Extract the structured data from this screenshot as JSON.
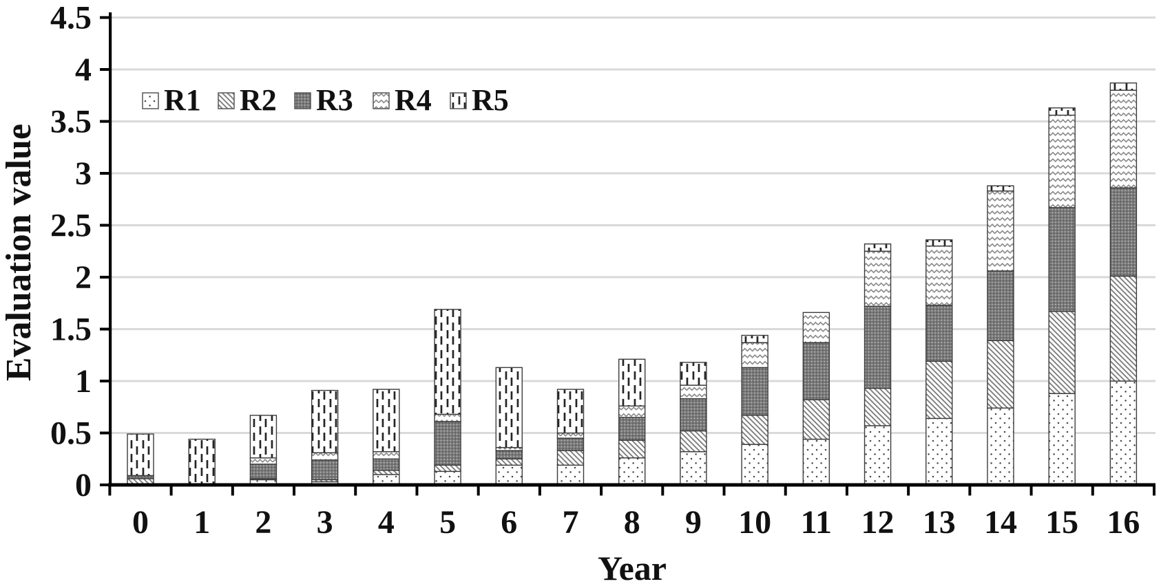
{
  "chart_data": {
    "type": "bar",
    "stacked": true,
    "title": "",
    "xlabel": "Year",
    "ylabel": "Evaluation value",
    "categories": [
      "0",
      "1",
      "2",
      "3",
      "4",
      "5",
      "6",
      "7",
      "8",
      "9",
      "10",
      "11",
      "12",
      "13",
      "14",
      "15",
      "16"
    ],
    "series": [
      {
        "name": "R1",
        "pattern": "sparse-dots",
        "values": [
          0.0,
          0.0,
          0.05,
          0.03,
          0.1,
          0.13,
          0.19,
          0.19,
          0.26,
          0.32,
          0.39,
          0.44,
          0.57,
          0.64,
          0.74,
          0.88,
          1.0
        ]
      },
      {
        "name": "R2",
        "pattern": "diagonal-hatch",
        "values": [
          0.06,
          0.0,
          0.01,
          0.02,
          0.04,
          0.06,
          0.06,
          0.14,
          0.17,
          0.2,
          0.28,
          0.38,
          0.36,
          0.55,
          0.65,
          0.79,
          1.01
        ]
      },
      {
        "name": "R3",
        "pattern": "dark-dense-dots",
        "values": [
          0.03,
          0.01,
          0.14,
          0.19,
          0.11,
          0.42,
          0.08,
          0.12,
          0.22,
          0.31,
          0.46,
          0.55,
          0.79,
          0.54,
          0.67,
          1.0,
          0.85
        ]
      },
      {
        "name": "R4",
        "pattern": "horizontal-waves",
        "values": [
          0.0,
          0.0,
          0.06,
          0.07,
          0.07,
          0.07,
          0.03,
          0.05,
          0.11,
          0.13,
          0.24,
          0.29,
          0.53,
          0.57,
          0.77,
          0.89,
          0.94
        ]
      },
      {
        "name": "R5",
        "pattern": "vertical-dashes",
        "values": [
          0.4,
          0.43,
          0.41,
          0.6,
          0.6,
          1.01,
          0.77,
          0.42,
          0.45,
          0.22,
          0.07,
          0.0,
          0.07,
          0.06,
          0.05,
          0.07,
          0.07
        ]
      }
    ],
    "ylim": [
      0,
      4.5
    ],
    "ytick_step": 0.5,
    "ytick_labels": [
      "0",
      "0.5",
      "1",
      "1.5",
      "2",
      "2.5",
      "3",
      "3.5",
      "4",
      "4.5"
    ],
    "grid": "horizontal",
    "legend_position": "top-left-inside",
    "legend_labels": [
      "R1",
      "R2",
      "R3",
      "R4",
      "R5"
    ]
  },
  "colors": {
    "background": "#ffffff",
    "axis": "#000000",
    "gridline": "#d9d9d9",
    "text": "#111111",
    "segment_border": "#3b3b3b",
    "hatch_gray": "#7f7f7f",
    "wave_gray": "#8c8c8c",
    "dense_base_gray": "#7a7a7a",
    "dot_ink": "#454545",
    "dash_ink": "#252525"
  }
}
